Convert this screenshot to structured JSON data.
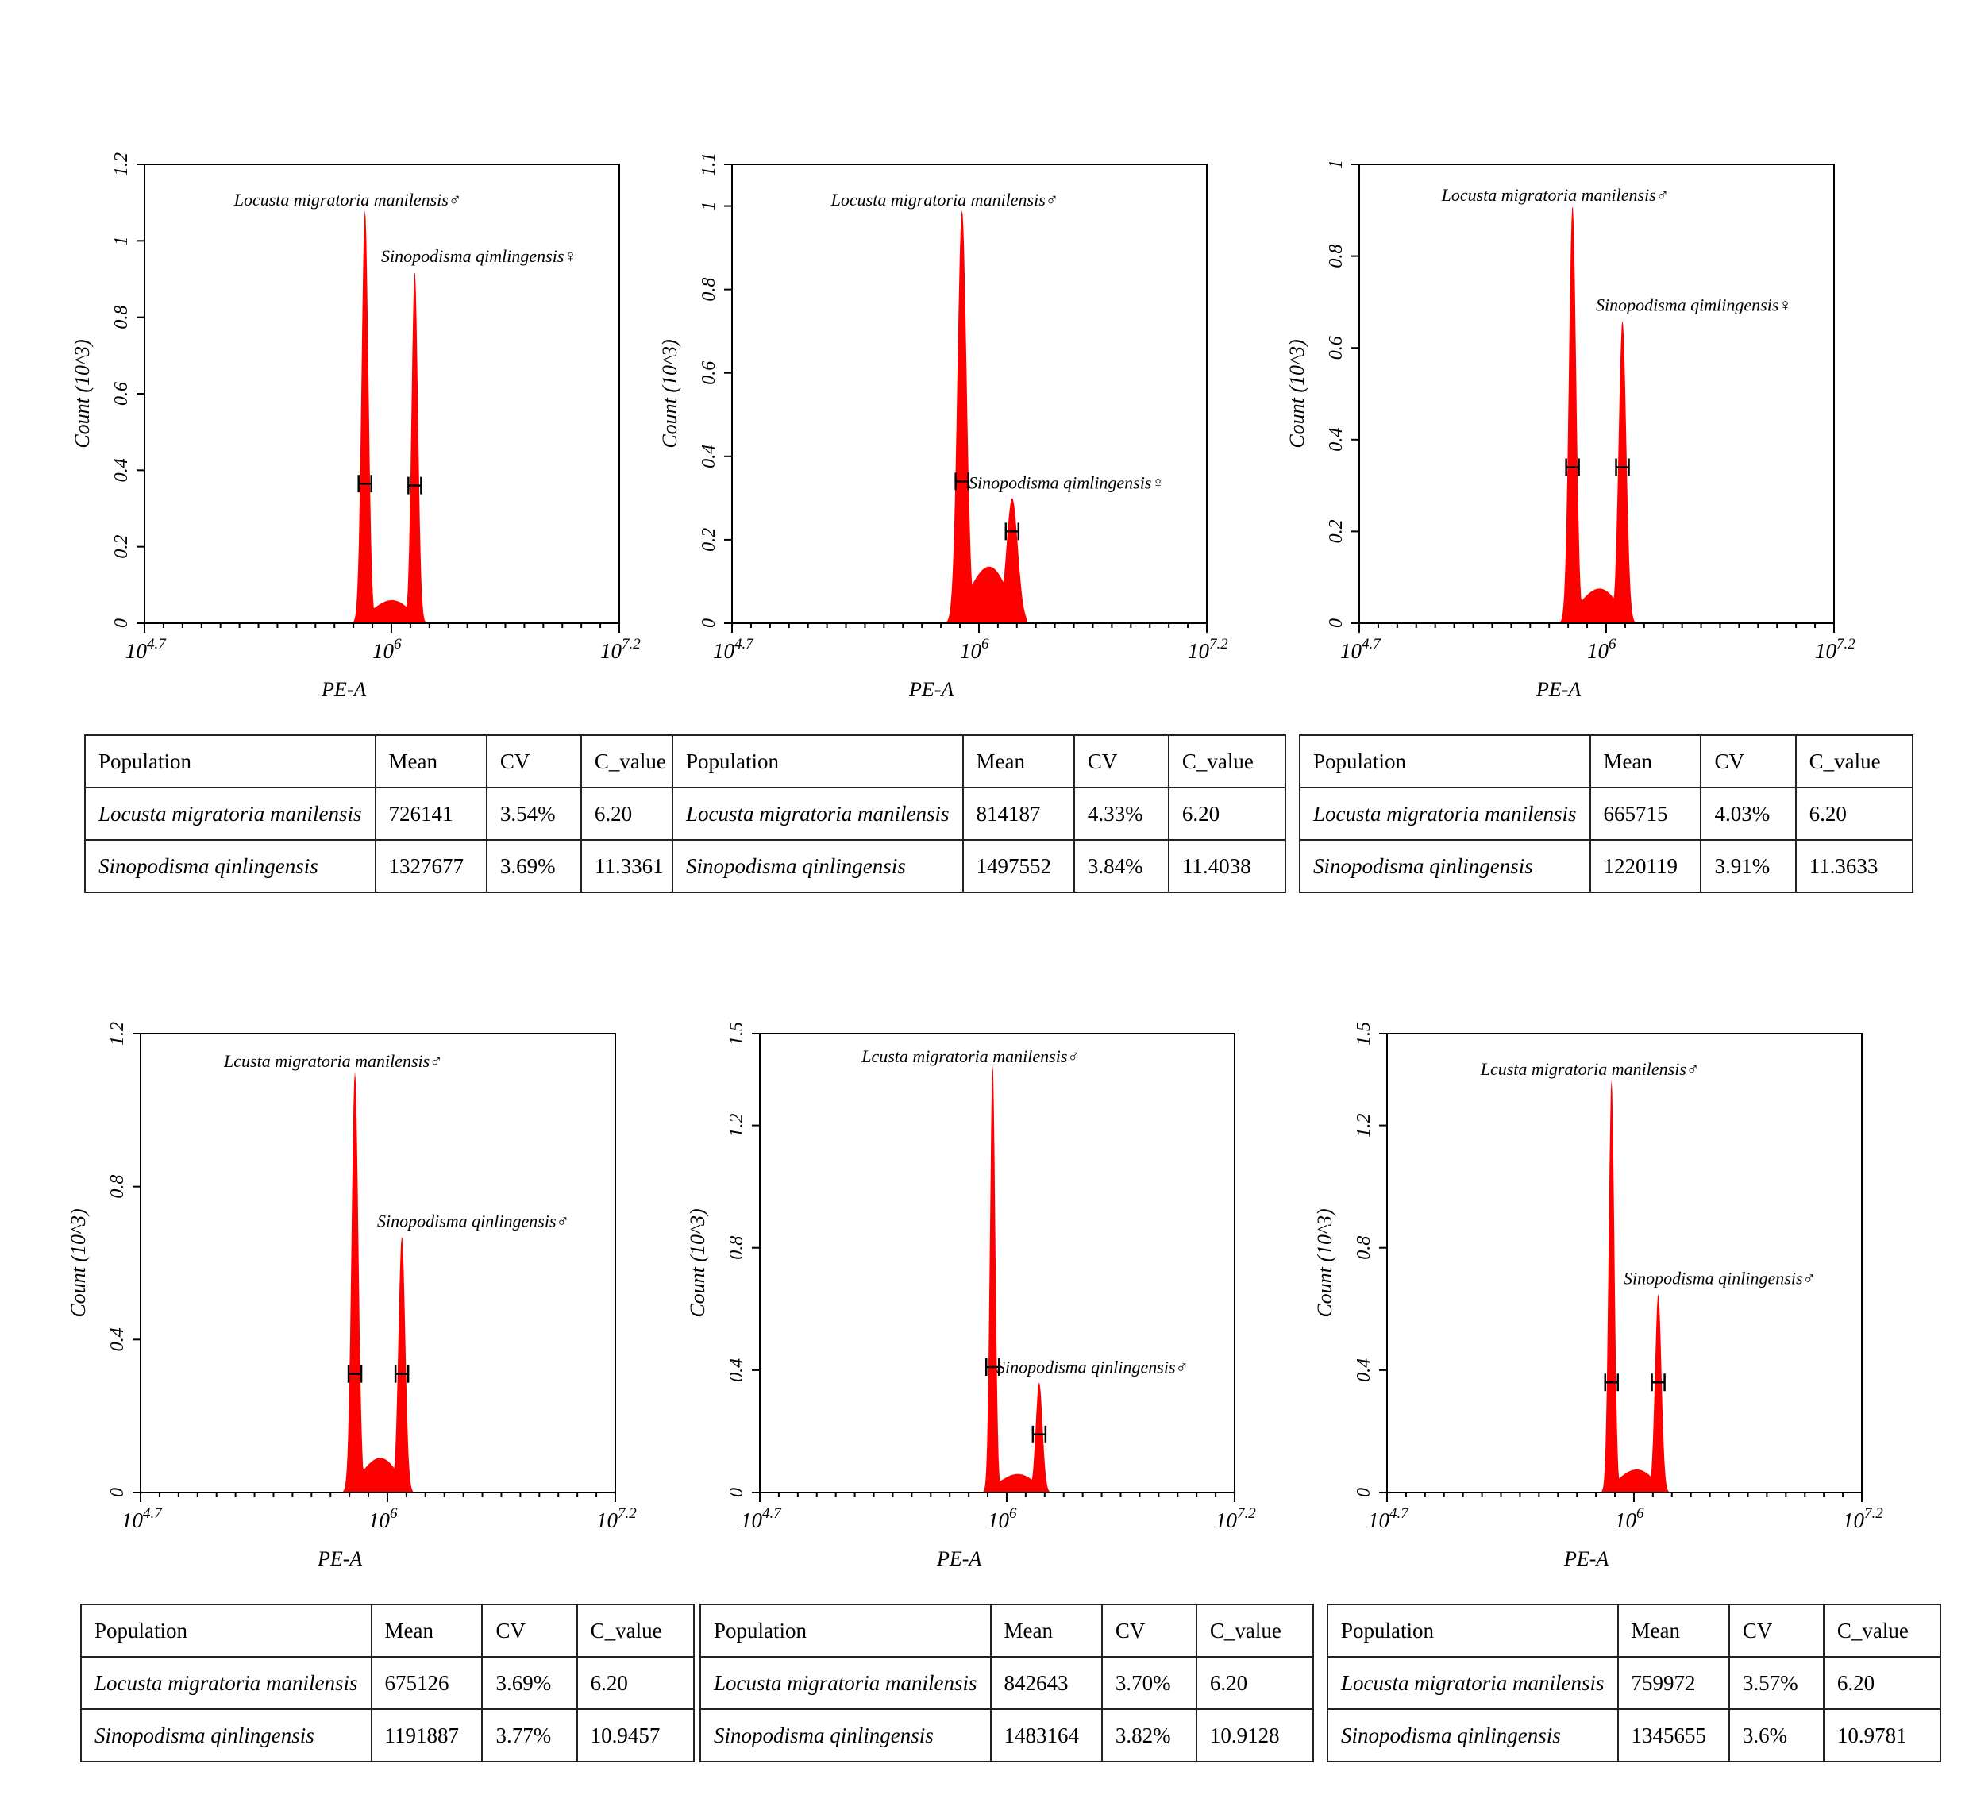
{
  "colors": {
    "histogram_fill": "#ff0000",
    "axis": "#000000",
    "gate_marker": "#000000"
  },
  "chart_data": [
    {
      "type": "area",
      "xlabel": "PE-A",
      "ylabel": "Count (10^3)",
      "x_scale": "log10",
      "xlim": [
        4.7,
        7.2
      ],
      "x_ticks": [
        {
          "base": "10",
          "exp": "4.7"
        },
        {
          "base": "10",
          "exp": "6"
        },
        {
          "base": "10",
          "exp": "7.2"
        }
      ],
      "ylim": [
        0,
        1.2
      ],
      "y_ticks": [
        "0",
        "0.2",
        "0.4",
        "0.6",
        "0.8",
        "1",
        "1.2"
      ],
      "peaks": [
        {
          "label": "Locusta migratoria manilensis♂",
          "x_log10": 5.861,
          "height": 1.08,
          "sigma": 0.018,
          "gate_y": 0.365
        },
        {
          "label": "Sinopodisma qimlingensis♀",
          "x_log10": 6.123,
          "height": 0.92,
          "sigma": 0.017,
          "gate_y": 0.36
        }
      ],
      "valley_level": 0.04,
      "table": {
        "headers": [
          "Population",
          "Mean",
          "CV",
          "C_value"
        ],
        "rows": [
          [
            "Locusta migratoria manilensis",
            "726141",
            "3.54%",
            "6.20"
          ],
          [
            "Sinopodisma qinlingensis",
            "1327677",
            "3.69%",
            "11.3361"
          ]
        ]
      }
    },
    {
      "type": "area",
      "xlabel": "PE-A",
      "ylabel": "Count (10^3)",
      "x_scale": "log10",
      "xlim": [
        4.7,
        7.2
      ],
      "x_ticks": [
        {
          "base": "10",
          "exp": "4.7"
        },
        {
          "base": "10",
          "exp": "6"
        },
        {
          "base": "10",
          "exp": "7.2"
        }
      ],
      "ylim": [
        0,
        1.1
      ],
      "y_ticks": [
        "0",
        "0.2",
        "0.4",
        "0.6",
        "0.8",
        "1",
        "1.1"
      ],
      "peaks": [
        {
          "label": "Locusta migratoria manilensis♂",
          "x_log10": 5.911,
          "height": 0.99,
          "sigma": 0.024,
          "gate_y": 0.34
        },
        {
          "label": "Sinopodisma qimlingensis♀",
          "x_log10": 6.175,
          "height": 0.3,
          "sigma": 0.03,
          "gate_y": 0.22
        }
      ],
      "valley_level": 0.09,
      "table": {
        "headers": [
          "Population",
          "Mean",
          "CV",
          "C_value"
        ],
        "rows": [
          [
            "Locusta migratoria manilensis",
            "814187",
            "4.33%",
            "6.20"
          ],
          [
            "Sinopodisma qinlingensis",
            "1497552",
            "3.84%",
            "11.4038"
          ]
        ]
      }
    },
    {
      "type": "area",
      "xlabel": "PE-A",
      "ylabel": "Count (10^3)",
      "x_scale": "log10",
      "xlim": [
        4.7,
        7.2
      ],
      "x_ticks": [
        {
          "base": "10",
          "exp": "4.7"
        },
        {
          "base": "10",
          "exp": "6"
        },
        {
          "base": "10",
          "exp": "7.2"
        }
      ],
      "ylim": [
        0,
        1.0
      ],
      "y_ticks": [
        "0",
        "0.2",
        "0.4",
        "0.6",
        "0.8",
        "1"
      ],
      "peaks": [
        {
          "label": "Locusta migratoria manilensis♂",
          "x_log10": 5.823,
          "height": 0.91,
          "sigma": 0.019,
          "gate_y": 0.34
        },
        {
          "label": "Sinopodisma qimlingensis♀",
          "x_log10": 6.086,
          "height": 0.66,
          "sigma": 0.02,
          "gate_y": 0.34
        }
      ],
      "valley_level": 0.05,
      "table": {
        "headers": [
          "Population",
          "Mean",
          "CV",
          "C_value"
        ],
        "rows": [
          [
            "Locusta migratoria manilensis",
            "665715",
            "4.03%",
            "6.20"
          ],
          [
            "Sinopodisma qinlingensis",
            "1220119",
            "3.91%",
            "11.3633"
          ]
        ]
      }
    },
    {
      "type": "area",
      "xlabel": "PE-A",
      "ylabel": "Count (10^3)",
      "x_scale": "log10",
      "xlim": [
        4.7,
        7.2
      ],
      "x_ticks": [
        {
          "base": "10",
          "exp": "4.7"
        },
        {
          "base": "10",
          "exp": "6"
        },
        {
          "base": "10",
          "exp": "7.2"
        }
      ],
      "ylim": [
        0,
        1.2
      ],
      "y_ticks": [
        "0",
        "0.4",
        "0.8",
        "1.2"
      ],
      "peaks": [
        {
          "label": "Lcusta migratoria manilensis♂",
          "x_log10": 5.829,
          "height": 1.1,
          "sigma": 0.018,
          "gate_y": 0.31
        },
        {
          "label": "Sinopodisma qinlingensis♂",
          "x_log10": 6.076,
          "height": 0.67,
          "sigma": 0.018,
          "gate_y": 0.31
        }
      ],
      "valley_level": 0.06,
      "table": {
        "headers": [
          "Population",
          "Mean",
          "CV",
          "C_value"
        ],
        "rows": [
          [
            "Locusta migratoria manilensis",
            "675126",
            "3.69%",
            "6.20"
          ],
          [
            "Sinopodisma qinlingensis",
            "1191887",
            "3.77%",
            "10.9457"
          ]
        ]
      }
    },
    {
      "type": "area",
      "xlabel": "PE-A",
      "ylabel": "Count (10^3)",
      "x_scale": "log10",
      "xlim": [
        4.7,
        7.2
      ],
      "x_ticks": [
        {
          "base": "10",
          "exp": "4.7"
        },
        {
          "base": "10",
          "exp": "6"
        },
        {
          "base": "10",
          "exp": "7.2"
        }
      ],
      "ylim": [
        0,
        1.5
      ],
      "y_ticks": [
        "0",
        "0.4",
        "0.8",
        "1.2",
        "1.5"
      ],
      "peaks": [
        {
          "label": "Lcusta migratoria manilensis♂",
          "x_log10": 5.926,
          "height": 1.4,
          "sigma": 0.014,
          "gate_y": 0.41
        },
        {
          "label": "Sinopodisma qinlingensis♂",
          "x_log10": 6.171,
          "height": 0.36,
          "sigma": 0.018,
          "gate_y": 0.19
        }
      ],
      "valley_level": 0.04,
      "table": {
        "headers": [
          "Population",
          "Mean",
          "CV",
          "C_value"
        ],
        "rows": [
          [
            "Locusta migratoria manilensis",
            "842643",
            "3.70%",
            "6.20"
          ],
          [
            "Sinopodisma qinlingensis",
            "1483164",
            "3.82%",
            "10.9128"
          ]
        ]
      }
    },
    {
      "type": "area",
      "xlabel": "PE-A",
      "ylabel": "Count (10^3)",
      "x_scale": "log10",
      "xlim": [
        4.7,
        7.2
      ],
      "x_ticks": [
        {
          "base": "10",
          "exp": "4.7"
        },
        {
          "base": "10",
          "exp": "6"
        },
        {
          "base": "10",
          "exp": "7.2"
        }
      ],
      "ylim": [
        0,
        1.5
      ],
      "y_ticks": [
        "0",
        "0.4",
        "0.8",
        "1.2",
        "1.5"
      ],
      "peaks": [
        {
          "label": "Lcusta migratoria manilensis♂",
          "x_log10": 5.882,
          "height": 1.35,
          "sigma": 0.015,
          "gate_y": 0.36
        },
        {
          "label": "Sinopodisma qinlingensis♂",
          "x_log10": 6.128,
          "height": 0.65,
          "sigma": 0.017,
          "gate_y": 0.36
        }
      ],
      "valley_level": 0.05,
      "table": {
        "headers": [
          "Population",
          "Mean",
          "CV",
          "C_value"
        ],
        "rows": [
          [
            "Locusta migratoria manilensis",
            "759972",
            "3.57%",
            "6.20"
          ],
          [
            "Sinopodisma qinlingensis",
            "1345655",
            "3.6%",
            "10.9781"
          ]
        ]
      }
    }
  ]
}
